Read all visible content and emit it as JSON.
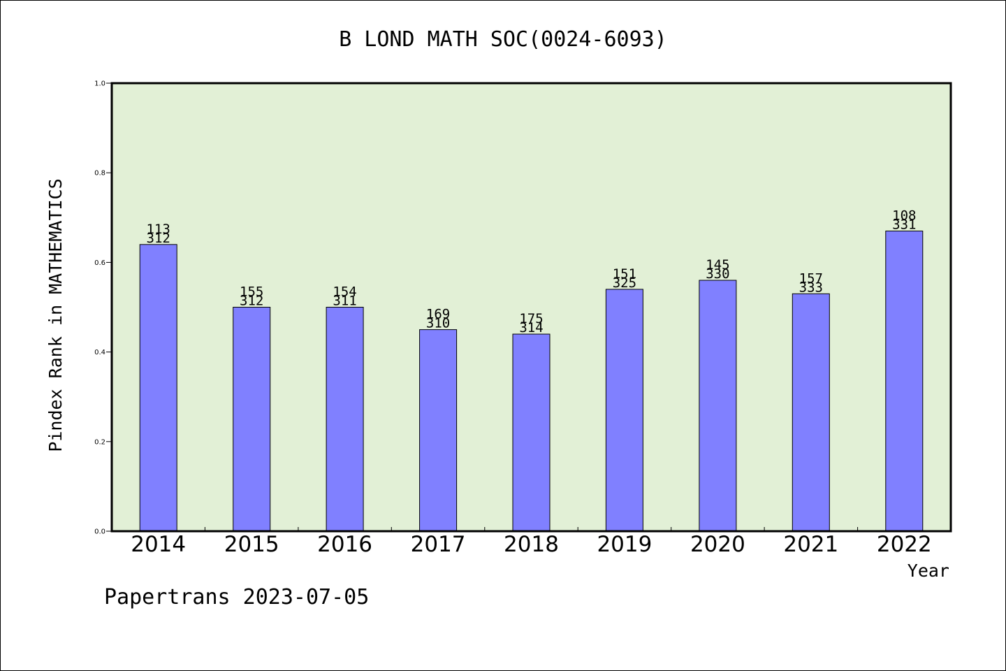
{
  "chart_data": {
    "type": "bar",
    "title": "B LOND MATH SOC(0024-6093)",
    "xlabel": "Year",
    "ylabel": "Pindex Rank in MATHEMATICS",
    "ylim": [
      0,
      1.0
    ],
    "yticks": [
      "0.0",
      "0.2",
      "0.4",
      "0.6",
      "0.8",
      "1.0"
    ],
    "categories": [
      "2014",
      "2015",
      "2016",
      "2017",
      "2018",
      "2019",
      "2020",
      "2021",
      "2022"
    ],
    "values": [
      0.64,
      0.5,
      0.5,
      0.45,
      0.44,
      0.54,
      0.56,
      0.53,
      0.67
    ],
    "rank_labels": [
      "113",
      "155",
      "154",
      "169",
      "175",
      "151",
      "145",
      "157",
      "108"
    ],
    "total_labels": [
      "312",
      "312",
      "311",
      "310",
      "314",
      "325",
      "330",
      "333",
      "331"
    ],
    "grid": false,
    "colors": {
      "plot_background": "#e2f0d6",
      "bar_fill": "#8080ff",
      "bar_edge": "#000000"
    }
  },
  "footer": {
    "credit": "Papertrans 2023-07-05"
  }
}
